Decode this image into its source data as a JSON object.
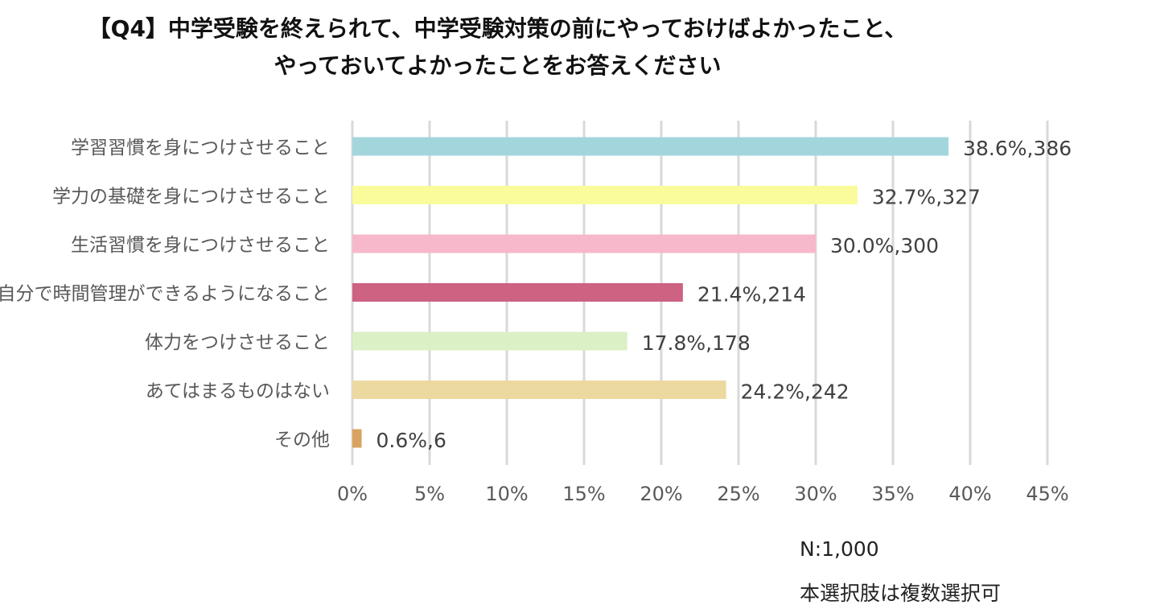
{
  "title_line1": "【Q4】中学受験を終えられて、中学受験対策の前にやっておけばよかったこと、",
  "title_line2": "やっておいてよかったことをお答えください",
  "note_n": "N:1,000",
  "note_multi": "本選択肢は複数選択可",
  "chart_data": {
    "type": "bar",
    "orientation": "horizontal",
    "categories": [
      "学習習慣を身につけさせること",
      "学力の基礎を身につけさせること",
      "生活習慣を身につけさせること",
      "自分で時間管理ができるようになること",
      "体力をつけさせること",
      "あてはまるものはない",
      "その他"
    ],
    "values": [
      38.6,
      32.7,
      30.0,
      21.4,
      17.8,
      24.2,
      0.6
    ],
    "data_labels": [
      "38.6%,386",
      "32.7%,327",
      "30.0%,300",
      "21.4%,214",
      "17.8%,178",
      "24.2%,242",
      "0.6%,6"
    ],
    "colors": [
      "#a3d6dc",
      "#fafb9a",
      "#f7b8cb",
      "#cd6282",
      "#dcf0c6",
      "#ecd9a0",
      "#d9a25f"
    ],
    "xlim": [
      0,
      45
    ],
    "xticks": [
      "0%",
      "5%",
      "10%",
      "15%",
      "20%",
      "25%",
      "30%",
      "35%",
      "40%",
      "45%"
    ],
    "grid": true,
    "legend": "none"
  }
}
